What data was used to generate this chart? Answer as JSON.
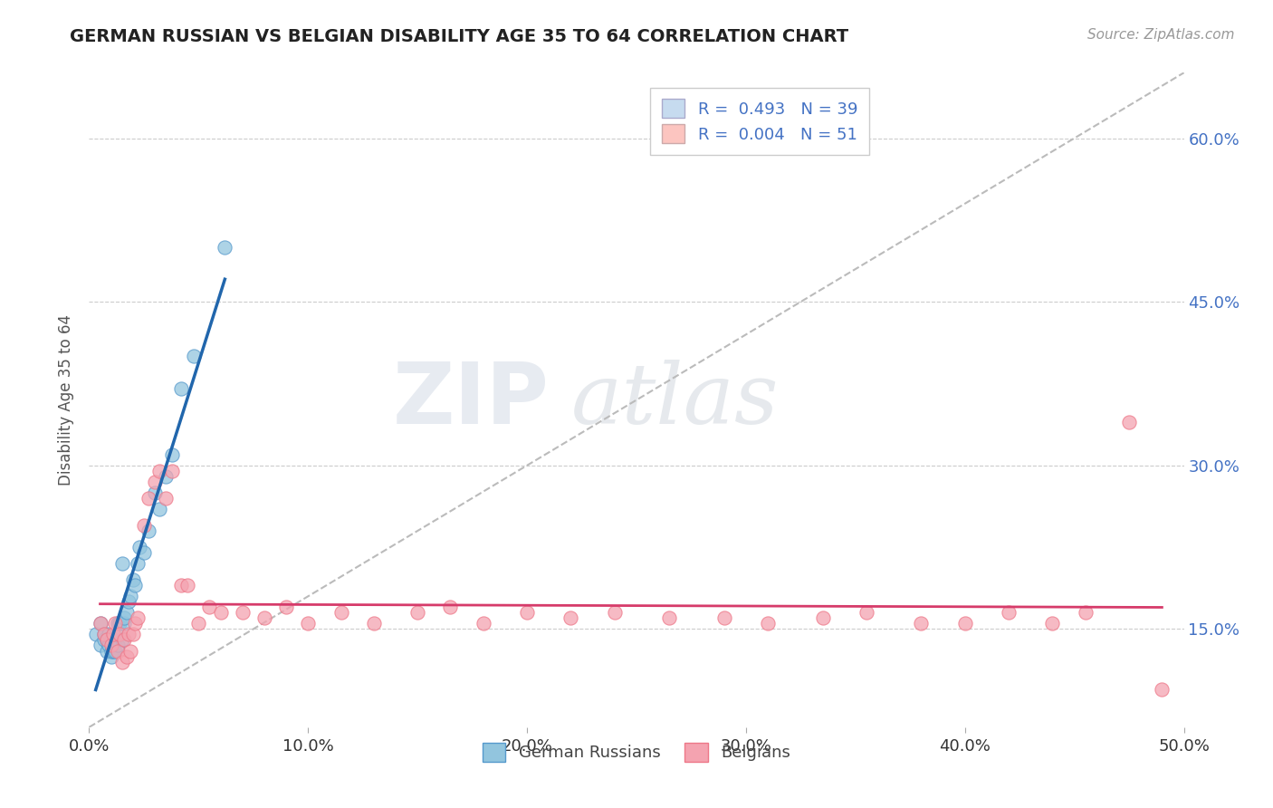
{
  "title": "GERMAN RUSSIAN VS BELGIAN DISABILITY AGE 35 TO 64 CORRELATION CHART",
  "source_text": "Source: ZipAtlas.com",
  "ylabel": "Disability Age 35 to 64",
  "xmin": 0.0,
  "xmax": 0.5,
  "ymin": 0.06,
  "ymax": 0.66,
  "x_tick_labels": [
    "0.0%",
    "10.0%",
    "20.0%",
    "30.0%",
    "40.0%",
    "50.0%"
  ],
  "x_tick_vals": [
    0.0,
    0.1,
    0.2,
    0.3,
    0.4,
    0.5
  ],
  "y_tick_labels": [
    "15.0%",
    "30.0%",
    "45.0%",
    "60.0%"
  ],
  "y_tick_vals": [
    0.15,
    0.3,
    0.45,
    0.6
  ],
  "legend_label1": "R =  0.493   N = 39",
  "legend_label2": "R =  0.004   N = 51",
  "legend_entry1": "German Russians",
  "legend_entry2": "Belgians",
  "color1": "#92c5de",
  "color2": "#f4a3b0",
  "color1_fill": "#c6dbef",
  "color2_fill": "#fcc5c0",
  "trendline1_color": "#2166ac",
  "trendline2_color": "#d63b6a",
  "watermark_zip": "ZIP",
  "watermark_atlas": "atlas",
  "german_russian_x": [
    0.003,
    0.005,
    0.005,
    0.007,
    0.007,
    0.008,
    0.008,
    0.009,
    0.009,
    0.01,
    0.01,
    0.01,
    0.011,
    0.012,
    0.012,
    0.013,
    0.013,
    0.013,
    0.014,
    0.015,
    0.015,
    0.016,
    0.016,
    0.017,
    0.018,
    0.019,
    0.02,
    0.021,
    0.022,
    0.023,
    0.025,
    0.027,
    0.03,
    0.032,
    0.035,
    0.038,
    0.042,
    0.048,
    0.062
  ],
  "german_russian_y": [
    0.145,
    0.135,
    0.155,
    0.14,
    0.145,
    0.13,
    0.14,
    0.135,
    0.145,
    0.125,
    0.13,
    0.14,
    0.13,
    0.13,
    0.14,
    0.135,
    0.145,
    0.155,
    0.155,
    0.14,
    0.21,
    0.155,
    0.16,
    0.165,
    0.175,
    0.18,
    0.195,
    0.19,
    0.21,
    0.225,
    0.22,
    0.24,
    0.275,
    0.26,
    0.29,
    0.31,
    0.37,
    0.4,
    0.5
  ],
  "belgian_x": [
    0.005,
    0.007,
    0.008,
    0.01,
    0.011,
    0.012,
    0.013,
    0.014,
    0.015,
    0.016,
    0.017,
    0.018,
    0.019,
    0.02,
    0.021,
    0.022,
    0.025,
    0.027,
    0.03,
    0.032,
    0.035,
    0.038,
    0.042,
    0.045,
    0.05,
    0.055,
    0.06,
    0.07,
    0.08,
    0.09,
    0.1,
    0.115,
    0.13,
    0.15,
    0.165,
    0.18,
    0.2,
    0.22,
    0.24,
    0.265,
    0.29,
    0.31,
    0.335,
    0.355,
    0.38,
    0.4,
    0.42,
    0.44,
    0.455,
    0.475,
    0.49
  ],
  "belgian_y": [
    0.155,
    0.145,
    0.14,
    0.135,
    0.145,
    0.155,
    0.13,
    0.145,
    0.12,
    0.14,
    0.125,
    0.145,
    0.13,
    0.145,
    0.155,
    0.16,
    0.245,
    0.27,
    0.285,
    0.295,
    0.27,
    0.295,
    0.19,
    0.19,
    0.155,
    0.17,
    0.165,
    0.165,
    0.16,
    0.17,
    0.155,
    0.165,
    0.155,
    0.165,
    0.17,
    0.155,
    0.165,
    0.16,
    0.165,
    0.16,
    0.16,
    0.155,
    0.16,
    0.165,
    0.155,
    0.155,
    0.165,
    0.155,
    0.165,
    0.34,
    0.095
  ]
}
